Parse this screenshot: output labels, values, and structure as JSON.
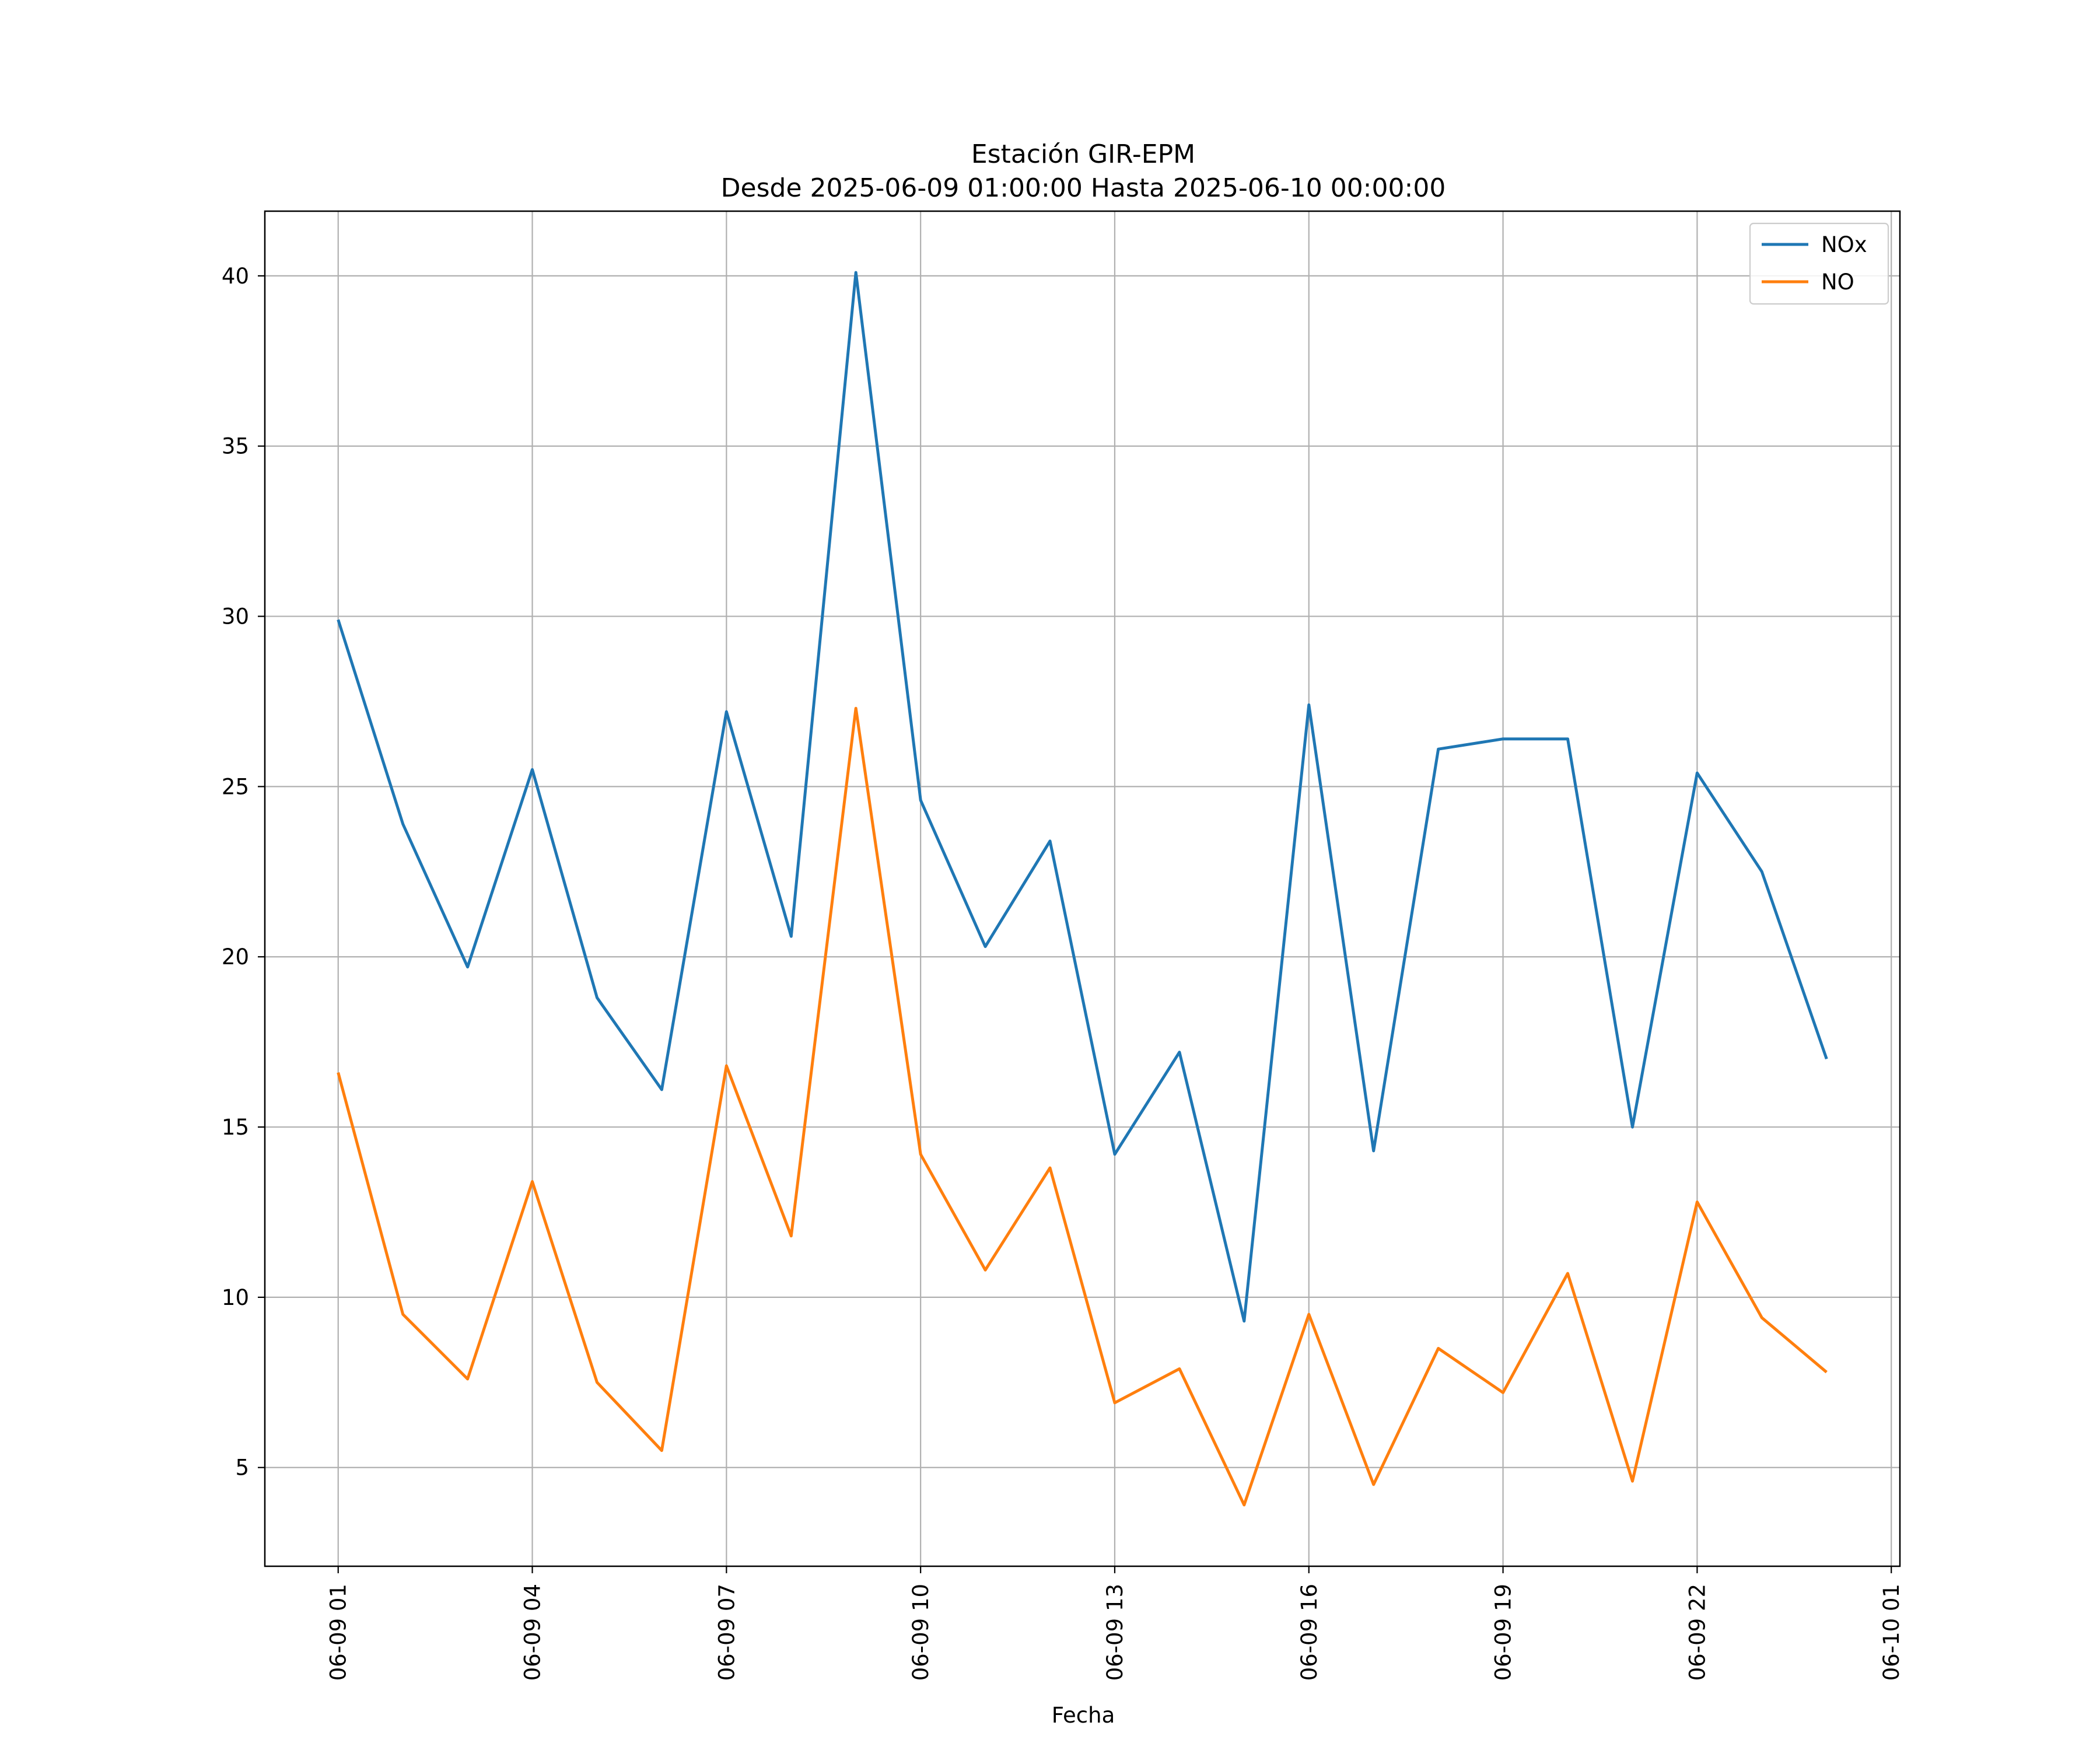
{
  "chart_data": {
    "type": "line",
    "title": "Estación GIR-EPM",
    "subtitle": "Desde 2025-06-09 01:00:00 Hasta 2025-06-10 00:00:00",
    "xlabel": "Fecha",
    "ylabel": "",
    "x": [
      "2025-06-09 01:00",
      "2025-06-09 02:00",
      "2025-06-09 03:00",
      "2025-06-09 04:00",
      "2025-06-09 05:00",
      "2025-06-09 06:00",
      "2025-06-09 07:00",
      "2025-06-09 08:00",
      "2025-06-09 09:00",
      "2025-06-09 10:00",
      "2025-06-09 11:00",
      "2025-06-09 12:00",
      "2025-06-09 13:00",
      "2025-06-09 14:00",
      "2025-06-09 15:00",
      "2025-06-09 16:00",
      "2025-06-09 17:00",
      "2025-06-09 18:00",
      "2025-06-09 19:00",
      "2025-06-09 20:00",
      "2025-06-09 21:00",
      "2025-06-09 22:00",
      "2025-06-09 23:00",
      "2025-06-10 00:00"
    ],
    "series": [
      {
        "name": "NOx",
        "color": "#1f77b4",
        "values": [
          29.9,
          23.9,
          19.7,
          25.5,
          18.8,
          16.1,
          27.2,
          20.6,
          40.1,
          24.6,
          20.3,
          23.4,
          14.2,
          17.2,
          9.3,
          27.4,
          14.3,
          26.1,
          26.4,
          26.4,
          15.0,
          25.4,
          22.5,
          17.0
        ]
      },
      {
        "name": "NO",
        "color": "#ff7f0e",
        "values": [
          16.6,
          9.5,
          7.6,
          13.4,
          7.5,
          5.5,
          16.8,
          11.8,
          27.3,
          14.2,
          10.8,
          13.8,
          6.9,
          7.9,
          3.9,
          9.5,
          4.5,
          8.5,
          7.2,
          10.7,
          4.6,
          12.8,
          9.4,
          7.8
        ]
      }
    ],
    "xticks": [
      "06-09 01",
      "06-09 04",
      "06-09 07",
      "06-09 10",
      "06-09 13",
      "06-09 16",
      "06-09 19",
      "06-09 22",
      "06-10 01"
    ],
    "yticks": [
      5,
      10,
      15,
      20,
      25,
      30,
      35,
      40
    ],
    "xlim": [
      "2025-06-08 23:52",
      "2025-06-10 01:08"
    ],
    "ylim": [
      2.1,
      41.9
    ],
    "grid": true,
    "legend_position": "top-right"
  }
}
